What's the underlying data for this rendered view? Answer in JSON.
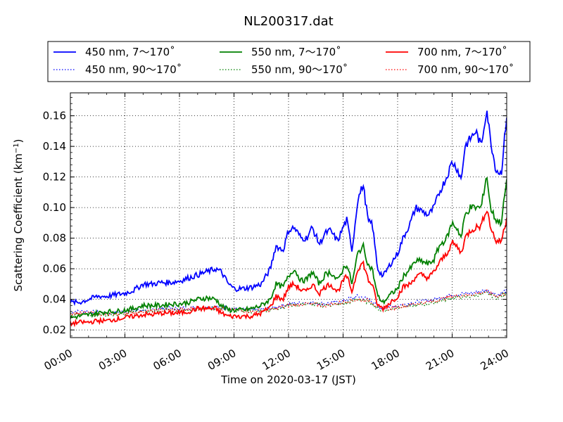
{
  "chart_data": {
    "type": "line",
    "title": "NL200317.dat",
    "xlabel": "Time on 2020-03-17 (JST)",
    "ylabel": "Scattering Coefficient (km",
    "ylabel_sup": "−1",
    "ylabel_close": ")",
    "xlim": [
      0,
      24
    ],
    "ylim": [
      0.015,
      0.175
    ],
    "x_ticks": [
      0,
      3,
      6,
      9,
      12,
      15,
      18,
      21,
      24
    ],
    "x_tick_labels": [
      "00:00",
      "03:00",
      "06:00",
      "09:00",
      "12:00",
      "15:00",
      "18:00",
      "21:00",
      "24:00"
    ],
    "y_ticks": [
      0.02,
      0.04,
      0.06,
      0.08,
      0.1,
      0.12,
      0.14,
      0.16
    ],
    "y_tick_labels": [
      "0.02",
      "0.04",
      "0.06",
      "0.08",
      "0.10",
      "0.12",
      "0.14",
      "0.16"
    ],
    "grid": true,
    "legend": "top",
    "series": [
      {
        "name": "450 nm, 7～170˚",
        "color": "#0000ff",
        "style": "solid",
        "x": [
          0,
          0.5,
          1,
          1.5,
          2,
          2.5,
          3,
          3.5,
          4,
          4.5,
          5,
          5.5,
          6,
          6.5,
          7,
          7.5,
          8,
          8.3,
          8.7,
          9,
          9.5,
          10,
          10.5,
          11,
          11.3,
          11.7,
          12,
          12.3,
          12.7,
          13,
          13.3,
          13.7,
          14,
          14.3,
          14.7,
          15,
          15.2,
          15.5,
          15.8,
          16.1,
          16.4,
          16.6,
          16.9,
          17.2,
          17.6,
          18,
          18.3,
          18.7,
          19,
          19.3,
          19.7,
          20,
          20.3,
          20.7,
          21,
          21.3,
          21.5,
          21.7,
          22,
          22.3,
          22.6,
          22.9,
          23.1,
          23.4,
          23.7,
          24
        ],
        "y": [
          0.038,
          0.038,
          0.04,
          0.042,
          0.042,
          0.043,
          0.044,
          0.046,
          0.05,
          0.05,
          0.051,
          0.051,
          0.052,
          0.054,
          0.056,
          0.058,
          0.06,
          0.058,
          0.05,
          0.047,
          0.047,
          0.048,
          0.05,
          0.06,
          0.075,
          0.072,
          0.085,
          0.087,
          0.08,
          0.08,
          0.087,
          0.076,
          0.083,
          0.085,
          0.078,
          0.087,
          0.092,
          0.072,
          0.105,
          0.115,
          0.09,
          0.09,
          0.06,
          0.055,
          0.063,
          0.07,
          0.08,
          0.09,
          0.1,
          0.098,
          0.095,
          0.1,
          0.11,
          0.12,
          0.13,
          0.125,
          0.118,
          0.14,
          0.145,
          0.15,
          0.14,
          0.165,
          0.145,
          0.125,
          0.122,
          0.16
        ]
      },
      {
        "name": "550 nm, 7～170˚",
        "color": "#008000",
        "style": "solid",
        "x": [
          0,
          0.5,
          1,
          1.5,
          2,
          2.5,
          3,
          3.5,
          4,
          4.5,
          5,
          5.5,
          6,
          6.5,
          7,
          7.5,
          8,
          8.3,
          8.7,
          9,
          9.5,
          10,
          10.5,
          11,
          11.3,
          11.7,
          12,
          12.3,
          12.7,
          13,
          13.3,
          13.7,
          14,
          14.3,
          14.7,
          15,
          15.2,
          15.5,
          15.8,
          16.1,
          16.4,
          16.6,
          16.9,
          17.2,
          17.6,
          18,
          18.3,
          18.7,
          19,
          19.3,
          19.7,
          20,
          20.3,
          20.7,
          21,
          21.3,
          21.5,
          21.7,
          22,
          22.3,
          22.6,
          22.9,
          23.1,
          23.4,
          23.7,
          24
        ],
        "y": [
          0.028,
          0.029,
          0.03,
          0.031,
          0.032,
          0.032,
          0.033,
          0.034,
          0.036,
          0.036,
          0.036,
          0.037,
          0.037,
          0.038,
          0.04,
          0.041,
          0.04,
          0.036,
          0.033,
          0.033,
          0.033,
          0.034,
          0.036,
          0.04,
          0.05,
          0.048,
          0.055,
          0.06,
          0.052,
          0.053,
          0.058,
          0.05,
          0.056,
          0.058,
          0.052,
          0.06,
          0.063,
          0.05,
          0.07,
          0.075,
          0.062,
          0.06,
          0.042,
          0.038,
          0.043,
          0.047,
          0.055,
          0.06,
          0.065,
          0.065,
          0.063,
          0.066,
          0.075,
          0.08,
          0.09,
          0.086,
          0.08,
          0.095,
          0.1,
          0.1,
          0.1,
          0.122,
          0.1,
          0.092,
          0.09,
          0.118
        ]
      },
      {
        "name": "700 nm, 7～170˚",
        "color": "#ff0000",
        "style": "solid",
        "x": [
          0,
          0.5,
          1,
          1.5,
          2,
          2.5,
          3,
          3.5,
          4,
          4.5,
          5,
          5.5,
          6,
          6.5,
          7,
          7.5,
          8,
          8.3,
          8.7,
          9,
          9.5,
          10,
          10.5,
          11,
          11.3,
          11.7,
          12,
          12.3,
          12.7,
          13,
          13.3,
          13.7,
          14,
          14.3,
          14.7,
          15,
          15.2,
          15.5,
          15.8,
          16.1,
          16.4,
          16.6,
          16.9,
          17.2,
          17.6,
          18,
          18.3,
          18.7,
          19,
          19.3,
          19.7,
          20,
          20.3,
          20.7,
          21,
          21.3,
          21.5,
          21.7,
          22,
          22.3,
          22.6,
          22.9,
          23.1,
          23.4,
          23.7,
          24
        ],
        "y": [
          0.024,
          0.025,
          0.025,
          0.026,
          0.026,
          0.027,
          0.028,
          0.029,
          0.03,
          0.03,
          0.031,
          0.031,
          0.031,
          0.032,
          0.034,
          0.034,
          0.034,
          0.031,
          0.029,
          0.029,
          0.029,
          0.029,
          0.031,
          0.035,
          0.042,
          0.04,
          0.048,
          0.05,
          0.046,
          0.045,
          0.05,
          0.044,
          0.048,
          0.05,
          0.045,
          0.052,
          0.055,
          0.045,
          0.06,
          0.064,
          0.052,
          0.05,
          0.036,
          0.034,
          0.038,
          0.042,
          0.048,
          0.05,
          0.055,
          0.056,
          0.054,
          0.058,
          0.064,
          0.07,
          0.077,
          0.074,
          0.07,
          0.08,
          0.085,
          0.087,
          0.088,
          0.1,
          0.088,
          0.078,
          0.078,
          0.093
        ]
      },
      {
        "name": "450 nm, 90～170˚",
        "color": "#0000ff",
        "style": "dotted",
        "x": [
          0,
          1,
          2,
          3,
          4,
          5,
          6,
          7,
          8,
          9,
          10,
          11,
          12,
          13,
          14,
          15,
          15.8,
          16.5,
          17,
          17.5,
          18,
          19,
          20,
          21,
          22,
          22.9,
          23.5,
          24
        ],
        "y": [
          0.032,
          0.032,
          0.031,
          0.032,
          0.033,
          0.034,
          0.034,
          0.035,
          0.035,
          0.034,
          0.033,
          0.034,
          0.037,
          0.038,
          0.037,
          0.039,
          0.042,
          0.04,
          0.034,
          0.035,
          0.036,
          0.038,
          0.04,
          0.043,
          0.044,
          0.046,
          0.043,
          0.046
        ]
      },
      {
        "name": "550 nm, 90～170˚",
        "color": "#008000",
        "style": "dotted",
        "x": [
          0,
          1,
          2,
          3,
          4,
          5,
          6,
          7,
          8,
          9,
          10,
          11,
          12,
          13,
          14,
          15,
          15.8,
          16.5,
          17,
          17.5,
          18,
          19,
          20,
          21,
          22,
          22.9,
          23.5,
          24
        ],
        "y": [
          0.03,
          0.03,
          0.03,
          0.031,
          0.032,
          0.033,
          0.033,
          0.034,
          0.034,
          0.033,
          0.032,
          0.033,
          0.036,
          0.037,
          0.036,
          0.037,
          0.04,
          0.038,
          0.033,
          0.033,
          0.035,
          0.036,
          0.038,
          0.041,
          0.042,
          0.044,
          0.041,
          0.044
        ]
      },
      {
        "name": "700 nm, 90～170˚",
        "color": "#ff0000",
        "style": "dotted",
        "x": [
          0,
          1,
          2,
          3,
          4,
          5,
          6,
          7,
          8,
          9,
          10,
          11,
          12,
          13,
          14,
          15,
          15.8,
          16.5,
          17,
          17.5,
          18,
          19,
          20,
          21,
          22,
          22.9,
          23.5,
          24
        ],
        "y": [
          0.031,
          0.031,
          0.03,
          0.031,
          0.032,
          0.033,
          0.033,
          0.034,
          0.034,
          0.033,
          0.032,
          0.033,
          0.036,
          0.037,
          0.036,
          0.038,
          0.04,
          0.039,
          0.034,
          0.034,
          0.035,
          0.037,
          0.039,
          0.042,
          0.043,
          0.045,
          0.042,
          0.044
        ]
      }
    ]
  }
}
